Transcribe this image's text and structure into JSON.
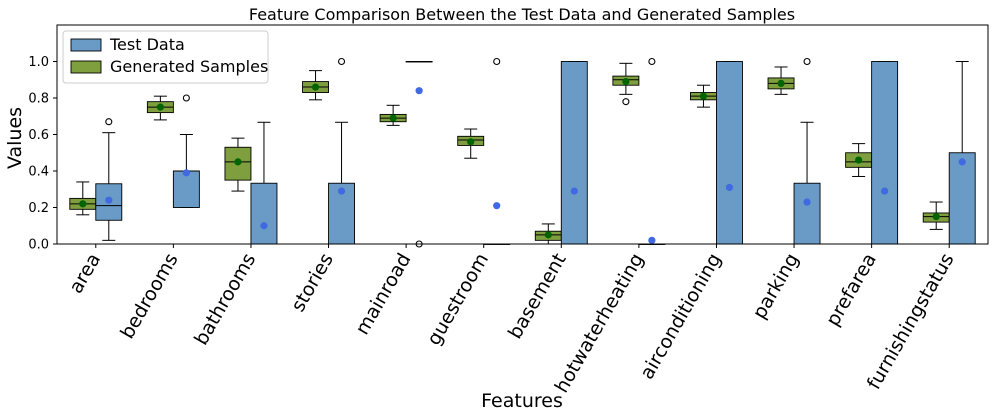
{
  "chart_data": {
    "type": "box",
    "title": "Feature Comparison Between the Test Data and Generated Samples",
    "xlabel": "Features",
    "ylabel": "Values",
    "ylim": [
      0.0,
      1.2
    ],
    "yticks": [
      "0.0",
      "0.2",
      "0.4",
      "0.6",
      "0.8",
      "1.0"
    ],
    "legend_position": "top-left",
    "categories": [
      "area",
      "bedrooms",
      "bathrooms",
      "stories",
      "mainroad",
      "guestroom",
      "basement",
      "hotwaterheating",
      "airconditioning",
      "parking",
      "prefarea",
      "furnishingstatus"
    ],
    "series": [
      {
        "name": "Test Data",
        "color": "#6a9bc7",
        "mean_color": "#4169e1",
        "boxes": [
          {
            "whislo": 0.02,
            "q1": 0.13,
            "med": 0.21,
            "q3": 0.33,
            "whishi": 0.61,
            "mean": 0.24,
            "fliers": [
              0.67
            ]
          },
          {
            "whislo": 0.2,
            "q1": 0.2,
            "med": 0.4,
            "q3": 0.4,
            "whishi": 0.6,
            "mean": 0.39,
            "fliers": [
              0.8
            ]
          },
          {
            "whislo": 0.0,
            "q1": 0.0,
            "med": 0.0,
            "q3": 0.333,
            "whishi": 0.667,
            "mean": 0.1,
            "fliers": []
          },
          {
            "whislo": 0.0,
            "q1": 0.0,
            "med": 0.0,
            "q3": 0.333,
            "whishi": 0.667,
            "mean": 0.29,
            "fliers": [
              1.0
            ]
          },
          {
            "whislo": 1.0,
            "q1": 1.0,
            "med": 1.0,
            "q3": 1.0,
            "whishi": 1.0,
            "mean": 0.84,
            "fliers": [
              0.0
            ]
          },
          {
            "whislo": 0.0,
            "q1": 0.0,
            "med": 0.0,
            "q3": 0.0,
            "whishi": 0.0,
            "mean": 0.21,
            "fliers": [
              1.0
            ]
          },
          {
            "whislo": 0.0,
            "q1": 0.0,
            "med": 0.0,
            "q3": 1.0,
            "whishi": 1.0,
            "mean": 0.29,
            "fliers": []
          },
          {
            "whislo": 0.0,
            "q1": 0.0,
            "med": 0.0,
            "q3": 0.0,
            "whishi": 0.0,
            "mean": 0.02,
            "fliers": [
              1.0
            ]
          },
          {
            "whislo": 0.0,
            "q1": 0.0,
            "med": 0.0,
            "q3": 1.0,
            "whishi": 1.0,
            "mean": 0.31,
            "fliers": []
          },
          {
            "whislo": 0.0,
            "q1": 0.0,
            "med": 0.0,
            "q3": 0.333,
            "whishi": 0.667,
            "mean": 0.23,
            "fliers": [
              1.0
            ]
          },
          {
            "whislo": 0.0,
            "q1": 0.0,
            "med": 0.0,
            "q3": 1.0,
            "whishi": 1.0,
            "mean": 0.29,
            "fliers": []
          },
          {
            "whislo": 0.0,
            "q1": 0.0,
            "med": 0.0,
            "q3": 0.5,
            "whishi": 1.0,
            "mean": 0.45,
            "fliers": []
          }
        ]
      },
      {
        "name": "Generated Samples",
        "color": "#7f9f3f",
        "mean_color": "#006400",
        "boxes": [
          {
            "whislo": 0.16,
            "q1": 0.19,
            "med": 0.22,
            "q3": 0.25,
            "whishi": 0.34,
            "mean": 0.22,
            "fliers": []
          },
          {
            "whislo": 0.68,
            "q1": 0.72,
            "med": 0.75,
            "q3": 0.78,
            "whishi": 0.81,
            "mean": 0.75,
            "fliers": []
          },
          {
            "whislo": 0.29,
            "q1": 0.35,
            "med": 0.45,
            "q3": 0.53,
            "whishi": 0.58,
            "mean": 0.45,
            "fliers": []
          },
          {
            "whislo": 0.79,
            "q1": 0.83,
            "med": 0.86,
            "q3": 0.89,
            "whishi": 0.95,
            "mean": 0.86,
            "fliers": []
          },
          {
            "whislo": 0.65,
            "q1": 0.67,
            "med": 0.69,
            "q3": 0.71,
            "whishi": 0.76,
            "mean": 0.69,
            "fliers": []
          },
          {
            "whislo": 0.47,
            "q1": 0.54,
            "med": 0.57,
            "q3": 0.59,
            "whishi": 0.63,
            "mean": 0.56,
            "fliers": []
          },
          {
            "whislo": 0.0,
            "q1": 0.02,
            "med": 0.05,
            "q3": 0.07,
            "whishi": 0.11,
            "mean": 0.05,
            "fliers": []
          },
          {
            "whislo": 0.82,
            "q1": 0.87,
            "med": 0.9,
            "q3": 0.92,
            "whishi": 0.99,
            "mean": 0.89,
            "fliers": [
              0.78
            ]
          },
          {
            "whislo": 0.75,
            "q1": 0.79,
            "med": 0.81,
            "q3": 0.83,
            "whishi": 0.87,
            "mean": 0.81,
            "fliers": []
          },
          {
            "whislo": 0.82,
            "q1": 0.85,
            "med": 0.88,
            "q3": 0.91,
            "whishi": 0.97,
            "mean": 0.88,
            "fliers": []
          },
          {
            "whislo": 0.37,
            "q1": 0.42,
            "med": 0.45,
            "q3": 0.5,
            "whishi": 0.55,
            "mean": 0.46,
            "fliers": []
          },
          {
            "whislo": 0.08,
            "q1": 0.12,
            "med": 0.15,
            "q3": 0.17,
            "whishi": 0.23,
            "mean": 0.15,
            "fliers": []
          }
        ]
      }
    ]
  }
}
